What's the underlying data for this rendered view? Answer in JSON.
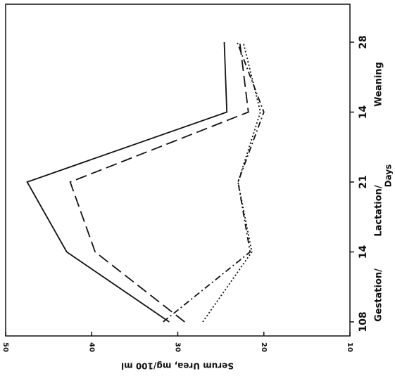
{
  "chart_data": {
    "type": "line",
    "ylabel": "Serum Urea, mg/100 ml",
    "xlabel": "Days",
    "group_labels": [
      "Gestation/",
      "Lactation/",
      "Weaning"
    ],
    "categories": [
      "108",
      "14",
      "21",
      "14",
      "28"
    ],
    "series": [
      {
        "color": "#111111",
        "dash": "none",
        "values": [
          31.0,
          42.9,
          47.5,
          24.3,
          24.6
        ]
      },
      {
        "color": "#111111",
        "dash": "16,7",
        "values": [
          29.2,
          39.6,
          42.5,
          21.8,
          22.8
        ]
      },
      {
        "color": "#111111",
        "dash": "9,4,2,4",
        "values": [
          31.7,
          21.6,
          23.0,
          20.0,
          23.1
        ]
      },
      {
        "color": "#111111",
        "dash": "2,3",
        "values": [
          27.1,
          21.4,
          23.0,
          20.4,
          22.4
        ]
      }
    ],
    "ylim": [
      10,
      50
    ],
    "yticks": [
      10,
      20,
      30,
      40,
      50
    ]
  }
}
